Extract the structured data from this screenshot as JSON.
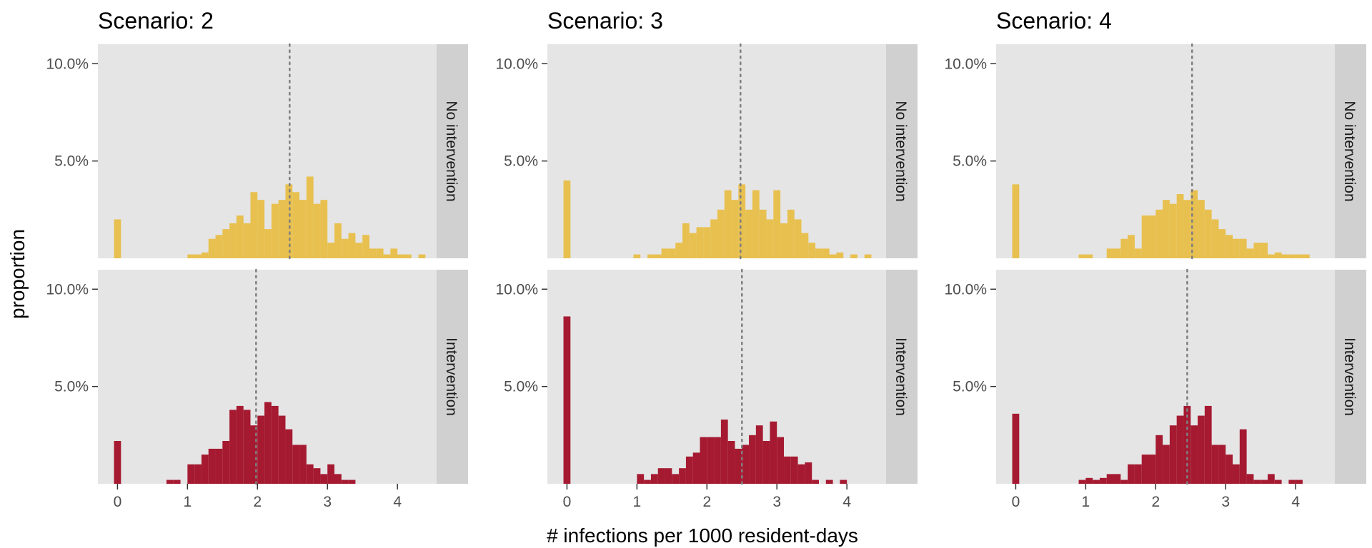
{
  "colors": {
    "no_intervention": "#e8c04f",
    "intervention": "#a51a31",
    "panel_bg": "#e5e5e5",
    "strip_bg": "#d0d0d0",
    "grid": "#ffffff",
    "mean_line": "#7f7f7f"
  },
  "chart_data": {
    "type": "bar",
    "subtype": "faceted-histogram",
    "xlabel": "# infections per 1000 resident-days",
    "ylabel": "proportion",
    "xlim": [
      -0.28,
      4.56
    ],
    "ylim": [
      0,
      0.11
    ],
    "x_ticks": [
      0,
      1,
      2,
      3,
      4
    ],
    "y_ticks": [
      0.05,
      0.1
    ],
    "y_tick_labels": [
      "5.0%",
      "10.0%"
    ],
    "bin_width": 0.1,
    "grid": false,
    "rows": [
      "No intervention",
      "Intervention"
    ],
    "columns": [
      "Scenario: 2",
      "Scenario: 3",
      "Scenario: 4"
    ],
    "panels": [
      {
        "column": "Scenario: 2",
        "row": "No intervention",
        "color_key": "no_intervention",
        "mean": 2.46,
        "bins": [
          [
            0,
            0.02
          ],
          [
            1.05,
            0.002
          ],
          [
            1.15,
            0.002
          ],
          [
            1.25,
            0.003
          ],
          [
            1.35,
            0.01
          ],
          [
            1.45,
            0.012
          ],
          [
            1.55,
            0.015
          ],
          [
            1.65,
            0.018
          ],
          [
            1.75,
            0.022
          ],
          [
            1.85,
            0.018
          ],
          [
            1.95,
            0.034
          ],
          [
            2.05,
            0.03
          ],
          [
            2.15,
            0.015
          ],
          [
            2.25,
            0.028
          ],
          [
            2.35,
            0.03
          ],
          [
            2.45,
            0.038
          ],
          [
            2.55,
            0.034
          ],
          [
            2.65,
            0.03
          ],
          [
            2.75,
            0.042
          ],
          [
            2.85,
            0.028
          ],
          [
            2.95,
            0.03
          ],
          [
            3.05,
            0.008
          ],
          [
            3.15,
            0.018
          ],
          [
            3.25,
            0.01
          ],
          [
            3.35,
            0.013
          ],
          [
            3.45,
            0.008
          ],
          [
            3.55,
            0.012
          ],
          [
            3.65,
            0.005
          ],
          [
            3.75,
            0.005
          ],
          [
            3.85,
            0.002
          ],
          [
            3.95,
            0.005
          ],
          [
            4.05,
            0.002
          ],
          [
            4.15,
            0.002
          ],
          [
            4.35,
            0.002
          ]
        ]
      },
      {
        "column": "Scenario: 2",
        "row": "Intervention",
        "color_key": "intervention",
        "mean": 1.98,
        "bins": [
          [
            0,
            0.022
          ],
          [
            0.75,
            0.002
          ],
          [
            0.85,
            0.002
          ],
          [
            1.05,
            0.01
          ],
          [
            1.15,
            0.01
          ],
          [
            1.25,
            0.015
          ],
          [
            1.35,
            0.018
          ],
          [
            1.45,
            0.018
          ],
          [
            1.55,
            0.022
          ],
          [
            1.65,
            0.038
          ],
          [
            1.75,
            0.04
          ],
          [
            1.85,
            0.038
          ],
          [
            1.95,
            0.03
          ],
          [
            2.05,
            0.035
          ],
          [
            2.15,
            0.042
          ],
          [
            2.25,
            0.04
          ],
          [
            2.35,
            0.035
          ],
          [
            2.45,
            0.028
          ],
          [
            2.55,
            0.02
          ],
          [
            2.65,
            0.02
          ],
          [
            2.75,
            0.01
          ],
          [
            2.85,
            0.008
          ],
          [
            2.95,
            0.005
          ],
          [
            3.05,
            0.01
          ],
          [
            3.15,
            0.005
          ],
          [
            3.25,
            0.002
          ],
          [
            3.35,
            0.002
          ]
        ]
      },
      {
        "column": "Scenario: 3",
        "row": "No intervention",
        "color_key": "no_intervention",
        "mean": 2.48,
        "bins": [
          [
            0,
            0.04
          ],
          [
            1.0,
            0.002
          ],
          [
            1.2,
            0.002
          ],
          [
            1.3,
            0.002
          ],
          [
            1.4,
            0.005
          ],
          [
            1.5,
            0.005
          ],
          [
            1.6,
            0.008
          ],
          [
            1.7,
            0.018
          ],
          [
            1.8,
            0.013
          ],
          [
            1.9,
            0.016
          ],
          [
            2.0,
            0.016
          ],
          [
            2.1,
            0.02
          ],
          [
            2.2,
            0.025
          ],
          [
            2.3,
            0.035
          ],
          [
            2.4,
            0.03
          ],
          [
            2.5,
            0.038
          ],
          [
            2.6,
            0.025
          ],
          [
            2.7,
            0.035
          ],
          [
            2.8,
            0.025
          ],
          [
            2.9,
            0.02
          ],
          [
            3.0,
            0.035
          ],
          [
            3.1,
            0.018
          ],
          [
            3.2,
            0.025
          ],
          [
            3.3,
            0.02
          ],
          [
            3.4,
            0.013
          ],
          [
            3.5,
            0.008
          ],
          [
            3.6,
            0.005
          ],
          [
            3.7,
            0.005
          ],
          [
            3.8,
            0.002
          ],
          [
            3.9,
            0.003
          ],
          [
            4.1,
            0.002
          ],
          [
            4.3,
            0.002
          ]
        ]
      },
      {
        "column": "Scenario: 3",
        "row": "Intervention",
        "color_key": "intervention",
        "mean": 2.5,
        "bins": [
          [
            0,
            0.086
          ],
          [
            1.05,
            0.005
          ],
          [
            1.15,
            0.002
          ],
          [
            1.25,
            0.005
          ],
          [
            1.35,
            0.008
          ],
          [
            1.45,
            0.008
          ],
          [
            1.55,
            0.005
          ],
          [
            1.65,
            0.008
          ],
          [
            1.75,
            0.014
          ],
          [
            1.85,
            0.016
          ],
          [
            1.95,
            0.024
          ],
          [
            2.05,
            0.024
          ],
          [
            2.15,
            0.024
          ],
          [
            2.25,
            0.033
          ],
          [
            2.35,
            0.022
          ],
          [
            2.45,
            0.018
          ],
          [
            2.55,
            0.02
          ],
          [
            2.65,
            0.025
          ],
          [
            2.75,
            0.03
          ],
          [
            2.85,
            0.022
          ],
          [
            2.95,
            0.032
          ],
          [
            3.05,
            0.024
          ],
          [
            3.15,
            0.014
          ],
          [
            3.25,
            0.014
          ],
          [
            3.35,
            0.01
          ],
          [
            3.45,
            0.011
          ],
          [
            3.55,
            0.002
          ],
          [
            3.75,
            0.002
          ],
          [
            3.95,
            0.002
          ]
        ]
      },
      {
        "column": "Scenario: 4",
        "row": "No intervention",
        "color_key": "no_intervention",
        "mean": 2.52,
        "bins": [
          [
            0,
            0.038
          ],
          [
            0.95,
            0.002
          ],
          [
            1.05,
            0.002
          ],
          [
            1.35,
            0.005
          ],
          [
            1.45,
            0.005
          ],
          [
            1.55,
            0.01
          ],
          [
            1.65,
            0.012
          ],
          [
            1.75,
            0.005
          ],
          [
            1.85,
            0.022
          ],
          [
            1.95,
            0.022
          ],
          [
            2.05,
            0.025
          ],
          [
            2.15,
            0.03
          ],
          [
            2.25,
            0.028
          ],
          [
            2.35,
            0.033
          ],
          [
            2.45,
            0.03
          ],
          [
            2.55,
            0.035
          ],
          [
            2.65,
            0.03
          ],
          [
            2.75,
            0.025
          ],
          [
            2.85,
            0.02
          ],
          [
            2.95,
            0.015
          ],
          [
            3.05,
            0.012
          ],
          [
            3.15,
            0.01
          ],
          [
            3.25,
            0.01
          ],
          [
            3.35,
            0.005
          ],
          [
            3.45,
            0.008
          ],
          [
            3.55,
            0.008
          ],
          [
            3.65,
            0.002
          ],
          [
            3.75,
            0.003
          ],
          [
            3.85,
            0.002
          ],
          [
            3.95,
            0.002
          ],
          [
            4.05,
            0.002
          ],
          [
            4.15,
            0.002
          ]
        ]
      },
      {
        "column": "Scenario: 4",
        "row": "Intervention",
        "color_key": "intervention",
        "mean": 2.45,
        "bins": [
          [
            0,
            0.036
          ],
          [
            0.95,
            0.002
          ],
          [
            1.05,
            0.003
          ],
          [
            1.15,
            0.002
          ],
          [
            1.25,
            0.003
          ],
          [
            1.35,
            0.005
          ],
          [
            1.45,
            0.005
          ],
          [
            1.55,
            0.002
          ],
          [
            1.65,
            0.01
          ],
          [
            1.75,
            0.01
          ],
          [
            1.85,
            0.015
          ],
          [
            1.95,
            0.015
          ],
          [
            2.05,
            0.025
          ],
          [
            2.15,
            0.02
          ],
          [
            2.25,
            0.03
          ],
          [
            2.35,
            0.035
          ],
          [
            2.45,
            0.04
          ],
          [
            2.55,
            0.03
          ],
          [
            2.65,
            0.035
          ],
          [
            2.75,
            0.04
          ],
          [
            2.85,
            0.02
          ],
          [
            2.95,
            0.02
          ],
          [
            3.05,
            0.015
          ],
          [
            3.15,
            0.01
          ],
          [
            3.25,
            0.028
          ],
          [
            3.35,
            0.005
          ],
          [
            3.45,
            0.002
          ],
          [
            3.55,
            0.002
          ],
          [
            3.65,
            0.005
          ],
          [
            3.75,
            0.002
          ],
          [
            3.95,
            0.002
          ],
          [
            4.05,
            0.002
          ]
        ]
      }
    ]
  }
}
